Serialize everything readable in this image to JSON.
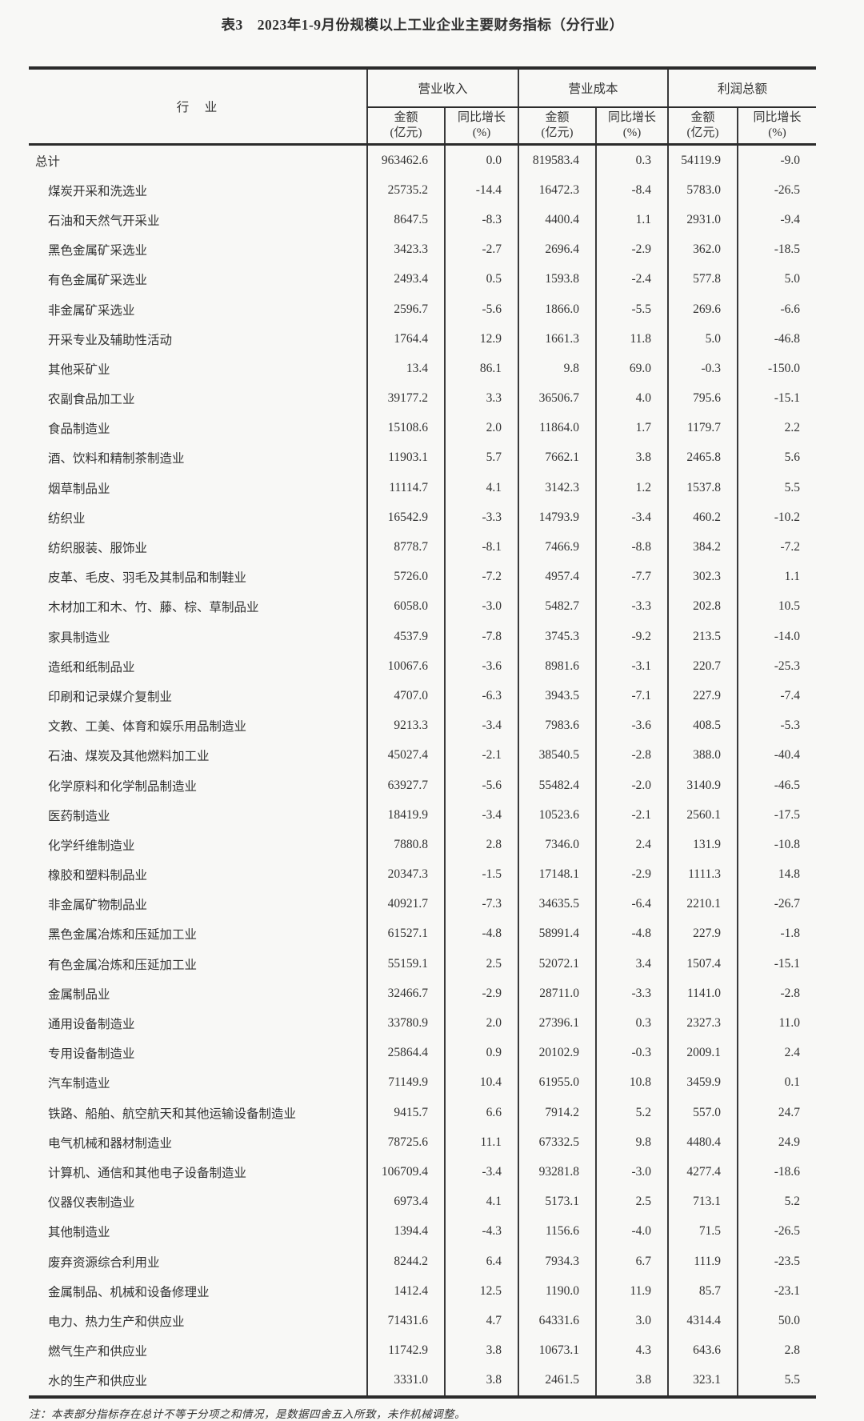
{
  "title": "表3　2023年1-9月份规模以上工业企业主要财务指标（分行业）",
  "table": {
    "row_header": "行　业",
    "groups": [
      "营业收入",
      "营业成本",
      "利润总额"
    ],
    "sub_amount": [
      "金额",
      "(亿元)"
    ],
    "sub_growth": [
      "同比增长",
      "(%)"
    ]
  },
  "rows": [
    {
      "label": "总计",
      "level": 0,
      "values": [
        "963462.6",
        "0.0",
        "819583.4",
        "0.3",
        "54119.9",
        "-9.0"
      ]
    },
    {
      "label": "煤炭开采和洗选业",
      "level": 1,
      "values": [
        "25735.2",
        "-14.4",
        "16472.3",
        "-8.4",
        "5783.0",
        "-26.5"
      ]
    },
    {
      "label": "石油和天然气开采业",
      "level": 1,
      "values": [
        "8647.5",
        "-8.3",
        "4400.4",
        "1.1",
        "2931.0",
        "-9.4"
      ]
    },
    {
      "label": "黑色金属矿采选业",
      "level": 1,
      "values": [
        "3423.3",
        "-2.7",
        "2696.4",
        "-2.9",
        "362.0",
        "-18.5"
      ]
    },
    {
      "label": "有色金属矿采选业",
      "level": 1,
      "values": [
        "2493.4",
        "0.5",
        "1593.8",
        "-2.4",
        "577.8",
        "5.0"
      ]
    },
    {
      "label": "非金属矿采选业",
      "level": 1,
      "values": [
        "2596.7",
        "-5.6",
        "1866.0",
        "-5.5",
        "269.6",
        "-6.6"
      ]
    },
    {
      "label": "开采专业及辅助性活动",
      "level": 1,
      "values": [
        "1764.4",
        "12.9",
        "1661.3",
        "11.8",
        "5.0",
        "-46.8"
      ]
    },
    {
      "label": "其他采矿业",
      "level": 1,
      "values": [
        "13.4",
        "86.1",
        "9.8",
        "69.0",
        "-0.3",
        "-150.0"
      ]
    },
    {
      "label": "农副食品加工业",
      "level": 1,
      "values": [
        "39177.2",
        "3.3",
        "36506.7",
        "4.0",
        "795.6",
        "-15.1"
      ]
    },
    {
      "label": "食品制造业",
      "level": 1,
      "values": [
        "15108.6",
        "2.0",
        "11864.0",
        "1.7",
        "1179.7",
        "2.2"
      ]
    },
    {
      "label": "酒、饮料和精制茶制造业",
      "level": 1,
      "values": [
        "11903.1",
        "5.7",
        "7662.1",
        "3.8",
        "2465.8",
        "5.6"
      ]
    },
    {
      "label": "烟草制品业",
      "level": 1,
      "values": [
        "11114.7",
        "4.1",
        "3142.3",
        "1.2",
        "1537.8",
        "5.5"
      ]
    },
    {
      "label": "纺织业",
      "level": 1,
      "values": [
        "16542.9",
        "-3.3",
        "14793.9",
        "-3.4",
        "460.2",
        "-10.2"
      ]
    },
    {
      "label": "纺织服装、服饰业",
      "level": 1,
      "values": [
        "8778.7",
        "-8.1",
        "7466.9",
        "-8.8",
        "384.2",
        "-7.2"
      ]
    },
    {
      "label": "皮革、毛皮、羽毛及其制品和制鞋业",
      "level": 1,
      "values": [
        "5726.0",
        "-7.2",
        "4957.4",
        "-7.7",
        "302.3",
        "1.1"
      ]
    },
    {
      "label": "木材加工和木、竹、藤、棕、草制品业",
      "level": 1,
      "values": [
        "6058.0",
        "-3.0",
        "5482.7",
        "-3.3",
        "202.8",
        "10.5"
      ]
    },
    {
      "label": "家具制造业",
      "level": 1,
      "values": [
        "4537.9",
        "-7.8",
        "3745.3",
        "-9.2",
        "213.5",
        "-14.0"
      ]
    },
    {
      "label": "造纸和纸制品业",
      "level": 1,
      "values": [
        "10067.6",
        "-3.6",
        "8981.6",
        "-3.1",
        "220.7",
        "-25.3"
      ]
    },
    {
      "label": "印刷和记录媒介复制业",
      "level": 1,
      "values": [
        "4707.0",
        "-6.3",
        "3943.5",
        "-7.1",
        "227.9",
        "-7.4"
      ]
    },
    {
      "label": "文教、工美、体育和娱乐用品制造业",
      "level": 1,
      "values": [
        "9213.3",
        "-3.4",
        "7983.6",
        "-3.6",
        "408.5",
        "-5.3"
      ]
    },
    {
      "label": "石油、煤炭及其他燃料加工业",
      "level": 1,
      "values": [
        "45027.4",
        "-2.1",
        "38540.5",
        "-2.8",
        "388.0",
        "-40.4"
      ]
    },
    {
      "label": "化学原料和化学制品制造业",
      "level": 1,
      "values": [
        "63927.7",
        "-5.6",
        "55482.4",
        "-2.0",
        "3140.9",
        "-46.5"
      ]
    },
    {
      "label": "医药制造业",
      "level": 1,
      "values": [
        "18419.9",
        "-3.4",
        "10523.6",
        "-2.1",
        "2560.1",
        "-17.5"
      ]
    },
    {
      "label": "化学纤维制造业",
      "level": 1,
      "values": [
        "7880.8",
        "2.8",
        "7346.0",
        "2.4",
        "131.9",
        "-10.8"
      ]
    },
    {
      "label": "橡胶和塑料制品业",
      "level": 1,
      "values": [
        "20347.3",
        "-1.5",
        "17148.1",
        "-2.9",
        "1111.3",
        "14.8"
      ]
    },
    {
      "label": "非金属矿物制品业",
      "level": 1,
      "values": [
        "40921.7",
        "-7.3",
        "34635.5",
        "-6.4",
        "2210.1",
        "-26.7"
      ]
    },
    {
      "label": "黑色金属冶炼和压延加工业",
      "level": 1,
      "values": [
        "61527.1",
        "-4.8",
        "58991.4",
        "-4.8",
        "227.9",
        "-1.8"
      ]
    },
    {
      "label": "有色金属冶炼和压延加工业",
      "level": 1,
      "values": [
        "55159.1",
        "2.5",
        "52072.1",
        "3.4",
        "1507.4",
        "-15.1"
      ]
    },
    {
      "label": "金属制品业",
      "level": 1,
      "values": [
        "32466.7",
        "-2.9",
        "28711.0",
        "-3.3",
        "1141.0",
        "-2.8"
      ]
    },
    {
      "label": "通用设备制造业",
      "level": 1,
      "values": [
        "33780.9",
        "2.0",
        "27396.1",
        "0.3",
        "2327.3",
        "11.0"
      ]
    },
    {
      "label": "专用设备制造业",
      "level": 1,
      "values": [
        "25864.4",
        "0.9",
        "20102.9",
        "-0.3",
        "2009.1",
        "2.4"
      ]
    },
    {
      "label": "汽车制造业",
      "level": 1,
      "values": [
        "71149.9",
        "10.4",
        "61955.0",
        "10.8",
        "3459.9",
        "0.1"
      ]
    },
    {
      "label": "铁路、船舶、航空航天和其他运输设备制造业",
      "level": 1,
      "values": [
        "9415.7",
        "6.6",
        "7914.2",
        "5.2",
        "557.0",
        "24.7"
      ]
    },
    {
      "label": "电气机械和器材制造业",
      "level": 1,
      "values": [
        "78725.6",
        "11.1",
        "67332.5",
        "9.8",
        "4480.4",
        "24.9"
      ]
    },
    {
      "label": "计算机、通信和其他电子设备制造业",
      "level": 1,
      "values": [
        "106709.4",
        "-3.4",
        "93281.8",
        "-3.0",
        "4277.4",
        "-18.6"
      ]
    },
    {
      "label": "仪器仪表制造业",
      "level": 1,
      "values": [
        "6973.4",
        "4.1",
        "5173.1",
        "2.5",
        "713.1",
        "5.2"
      ]
    },
    {
      "label": "其他制造业",
      "level": 1,
      "values": [
        "1394.4",
        "-4.3",
        "1156.6",
        "-4.0",
        "71.5",
        "-26.5"
      ]
    },
    {
      "label": "废弃资源综合利用业",
      "level": 1,
      "values": [
        "8244.2",
        "6.4",
        "7934.3",
        "6.7",
        "111.9",
        "-23.5"
      ]
    },
    {
      "label": "金属制品、机械和设备修理业",
      "level": 1,
      "values": [
        "1412.4",
        "12.5",
        "1190.0",
        "11.9",
        "85.7",
        "-23.1"
      ]
    },
    {
      "label": "电力、热力生产和供应业",
      "level": 1,
      "values": [
        "71431.6",
        "4.7",
        "64331.6",
        "3.0",
        "4314.4",
        "50.0"
      ]
    },
    {
      "label": "燃气生产和供应业",
      "level": 1,
      "values": [
        "11742.9",
        "3.8",
        "10673.1",
        "4.3",
        "643.6",
        "2.8"
      ]
    },
    {
      "label": "水的生产和供应业",
      "level": 1,
      "values": [
        "3331.0",
        "3.8",
        "2461.5",
        "3.8",
        "323.1",
        "5.5"
      ]
    }
  ],
  "note": "注：本表部分指标存在总计不等于分项之和情况，是数据四舍五入所致，未作机械调整。"
}
